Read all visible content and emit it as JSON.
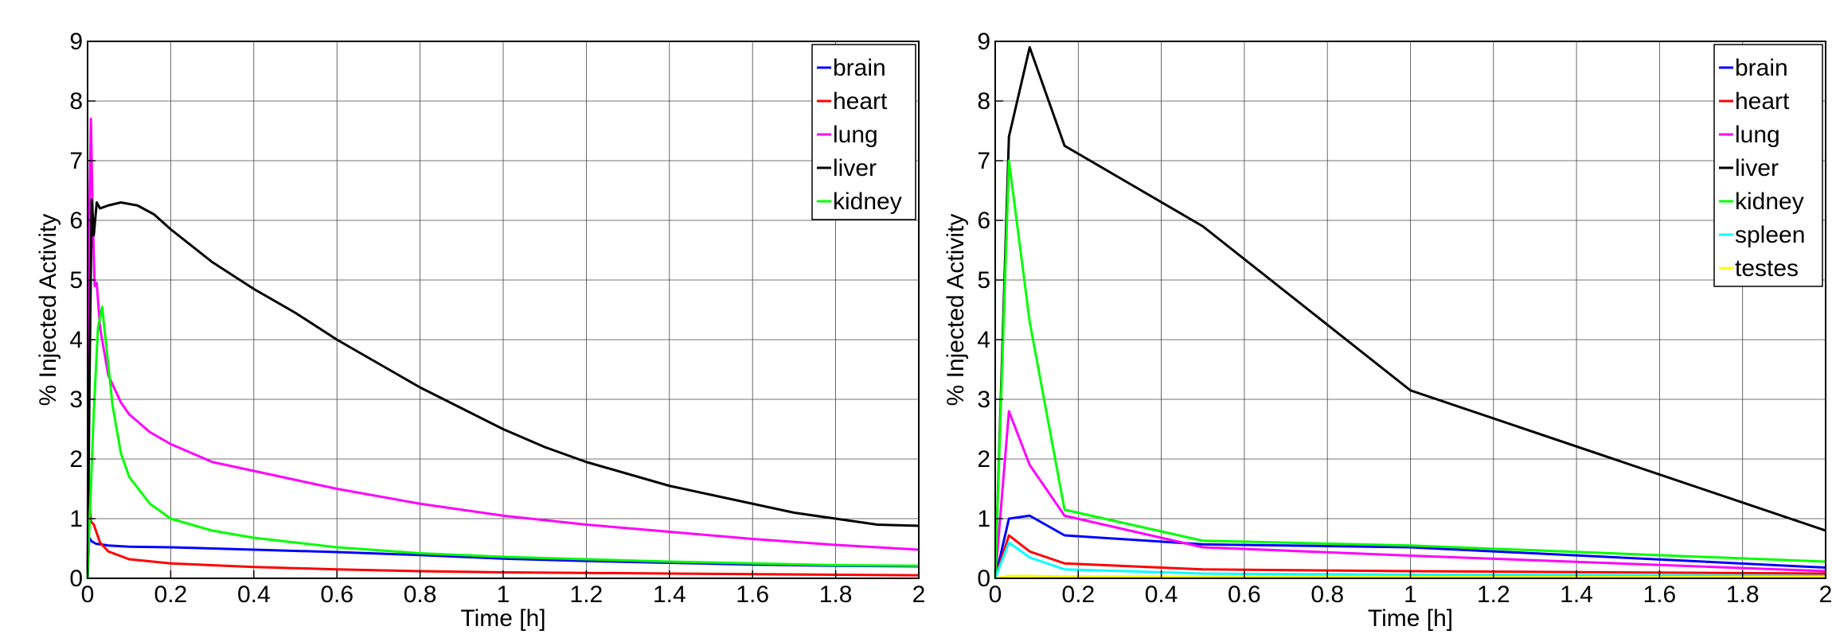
{
  "chart_data": [
    {
      "type": "line",
      "title": "",
      "xlabel": "Time [h]",
      "ylabel": "% Injected Activity",
      "xlim": [
        0,
        2
      ],
      "ylim": [
        0,
        9
      ],
      "xticks": [
        "0",
        "0.2",
        "0.4",
        "0.6",
        "0.8",
        "1",
        "1.2",
        "1.4",
        "1.6",
        "1.8",
        "2"
      ],
      "yticks": [
        "0",
        "1",
        "2",
        "3",
        "4",
        "5",
        "6",
        "7",
        "8",
        "9"
      ],
      "grid": true,
      "legend_position": "top-right",
      "series": [
        {
          "name": "brain",
          "color": "#0000ff",
          "points": [
            [
              0,
              0
            ],
            [
              0.004,
              0.68
            ],
            [
              0.01,
              0.62
            ],
            [
              0.02,
              0.58
            ],
            [
              0.05,
              0.55
            ],
            [
              0.1,
              0.53
            ],
            [
              0.2,
              0.52
            ],
            [
              0.4,
              0.48
            ],
            [
              0.6,
              0.44
            ],
            [
              0.8,
              0.39
            ],
            [
              1.0,
              0.33
            ],
            [
              1.2,
              0.29
            ],
            [
              1.4,
              0.26
            ],
            [
              1.6,
              0.23
            ],
            [
              1.8,
              0.21
            ],
            [
              2.0,
              0.2
            ]
          ]
        },
        {
          "name": "heart",
          "color": "#ff0000",
          "points": [
            [
              0,
              0
            ],
            [
              0.003,
              1.5
            ],
            [
              0.008,
              0.95
            ],
            [
              0.015,
              0.9
            ],
            [
              0.03,
              0.6
            ],
            [
              0.05,
              0.45
            ],
            [
              0.1,
              0.32
            ],
            [
              0.2,
              0.25
            ],
            [
              0.4,
              0.19
            ],
            [
              0.6,
              0.15
            ],
            [
              0.8,
              0.12
            ],
            [
              1.0,
              0.1
            ],
            [
              1.2,
              0.09
            ],
            [
              1.4,
              0.08
            ],
            [
              1.6,
              0.07
            ],
            [
              1.8,
              0.06
            ],
            [
              2.0,
              0.05
            ]
          ]
        },
        {
          "name": "lung",
          "color": "#ff00ff",
          "points": [
            [
              0,
              0
            ],
            [
              0.003,
              5.5
            ],
            [
              0.008,
              7.7
            ],
            [
              0.012,
              6.2
            ],
            [
              0.017,
              4.9
            ],
            [
              0.022,
              4.95
            ],
            [
              0.03,
              4.2
            ],
            [
              0.05,
              3.4
            ],
            [
              0.08,
              2.95
            ],
            [
              0.1,
              2.75
            ],
            [
              0.15,
              2.45
            ],
            [
              0.2,
              2.25
            ],
            [
              0.3,
              1.95
            ],
            [
              0.4,
              1.8
            ],
            [
              0.5,
              1.65
            ],
            [
              0.6,
              1.5
            ],
            [
              0.8,
              1.25
            ],
            [
              1.0,
              1.05
            ],
            [
              1.2,
              0.9
            ],
            [
              1.4,
              0.78
            ],
            [
              1.6,
              0.66
            ],
            [
              1.8,
              0.56
            ],
            [
              2.0,
              0.48
            ]
          ]
        },
        {
          "name": "liver",
          "color": "#000000",
          "points": [
            [
              0,
              0
            ],
            [
              0.005,
              3.5
            ],
            [
              0.01,
              6.35
            ],
            [
              0.015,
              5.75
            ],
            [
              0.022,
              6.3
            ],
            [
              0.03,
              6.2
            ],
            [
              0.05,
              6.25
            ],
            [
              0.08,
              6.3
            ],
            [
              0.12,
              6.25
            ],
            [
              0.16,
              6.1
            ],
            [
              0.2,
              5.85
            ],
            [
              0.3,
              5.3
            ],
            [
              0.4,
              4.85
            ],
            [
              0.5,
              4.45
            ],
            [
              0.6,
              4.0
            ],
            [
              0.7,
              3.6
            ],
            [
              0.8,
              3.2
            ],
            [
              0.9,
              2.85
            ],
            [
              1.0,
              2.5
            ],
            [
              1.1,
              2.2
            ],
            [
              1.2,
              1.95
            ],
            [
              1.3,
              1.75
            ],
            [
              1.4,
              1.55
            ],
            [
              1.5,
              1.4
            ],
            [
              1.6,
              1.25
            ],
            [
              1.7,
              1.1
            ],
            [
              1.8,
              1.0
            ],
            [
              1.9,
              0.9
            ],
            [
              2.0,
              0.88
            ]
          ]
        },
        {
          "name": "kidney",
          "color": "#00ff00",
          "points": [
            [
              0,
              0
            ],
            [
              0.005,
              1.0
            ],
            [
              0.015,
              2.8
            ],
            [
              0.025,
              4.2
            ],
            [
              0.035,
              4.55
            ],
            [
              0.045,
              3.9
            ],
            [
              0.06,
              2.9
            ],
            [
              0.08,
              2.1
            ],
            [
              0.1,
              1.7
            ],
            [
              0.15,
              1.25
            ],
            [
              0.2,
              1.0
            ],
            [
              0.3,
              0.8
            ],
            [
              0.4,
              0.68
            ],
            [
              0.5,
              0.6
            ],
            [
              0.6,
              0.52
            ],
            [
              0.8,
              0.42
            ],
            [
              1.0,
              0.36
            ],
            [
              1.2,
              0.32
            ],
            [
              1.4,
              0.28
            ],
            [
              1.6,
              0.25
            ],
            [
              1.8,
              0.22
            ],
            [
              2.0,
              0.21
            ]
          ]
        }
      ]
    },
    {
      "type": "line",
      "title": "",
      "xlabel": "Time [h]",
      "ylabel": "% Injected Activity",
      "xlim": [
        0,
        2
      ],
      "ylim": [
        0,
        9
      ],
      "xticks": [
        "0",
        "0.2",
        "0.4",
        "0.6",
        "0.8",
        "1",
        "1.2",
        "1.4",
        "1.6",
        "1.8",
        "2"
      ],
      "yticks": [
        "0",
        "1",
        "2",
        "3",
        "4",
        "5",
        "6",
        "7",
        "8",
        "9"
      ],
      "grid": true,
      "legend_position": "top-right",
      "series": [
        {
          "name": "brain",
          "color": "#0000ff",
          "points": [
            [
              0,
              0
            ],
            [
              0.033,
              1.0
            ],
            [
              0.083,
              1.05
            ],
            [
              0.167,
              0.72
            ],
            [
              0.5,
              0.57
            ],
            [
              1.0,
              0.52
            ],
            [
              2.0,
              0.18
            ]
          ]
        },
        {
          "name": "heart",
          "color": "#ff0000",
          "points": [
            [
              0,
              0
            ],
            [
              0.033,
              0.72
            ],
            [
              0.083,
              0.45
            ],
            [
              0.167,
              0.25
            ],
            [
              0.5,
              0.15
            ],
            [
              1.0,
              0.12
            ],
            [
              2.0,
              0.08
            ]
          ]
        },
        {
          "name": "lung",
          "color": "#ff00ff",
          "points": [
            [
              0,
              0
            ],
            [
              0.033,
              2.8
            ],
            [
              0.083,
              1.9
            ],
            [
              0.167,
              1.05
            ],
            [
              0.5,
              0.52
            ],
            [
              1.0,
              0.38
            ],
            [
              2.0,
              0.12
            ]
          ]
        },
        {
          "name": "liver",
          "color": "#000000",
          "points": [
            [
              0,
              0
            ],
            [
              0.033,
              7.4
            ],
            [
              0.083,
              8.9
            ],
            [
              0.167,
              7.25
            ],
            [
              0.5,
              5.9
            ],
            [
              1.0,
              3.15
            ],
            [
              2.0,
              0.8
            ]
          ]
        },
        {
          "name": "kidney",
          "color": "#00ff00",
          "points": [
            [
              0,
              0
            ],
            [
              0.033,
              7.0
            ],
            [
              0.083,
              4.3
            ],
            [
              0.167,
              1.15
            ],
            [
              0.5,
              0.63
            ],
            [
              1.0,
              0.55
            ],
            [
              2.0,
              0.28
            ]
          ]
        },
        {
          "name": "spleen",
          "color": "#00ffff",
          "points": [
            [
              0,
              0
            ],
            [
              0.033,
              0.6
            ],
            [
              0.083,
              0.35
            ],
            [
              0.167,
              0.15
            ],
            [
              0.5,
              0.08
            ],
            [
              1.0,
              0.06
            ],
            [
              2.0,
              0.04
            ]
          ]
        },
        {
          "name": "testes",
          "color": "#ffff00",
          "points": [
            [
              0,
              0
            ],
            [
              0.033,
              0.04
            ],
            [
              0.083,
              0.04
            ],
            [
              0.167,
              0.03
            ],
            [
              0.5,
              0.03
            ],
            [
              1.0,
              0.02
            ],
            [
              2.0,
              0.02
            ]
          ]
        }
      ]
    }
  ]
}
